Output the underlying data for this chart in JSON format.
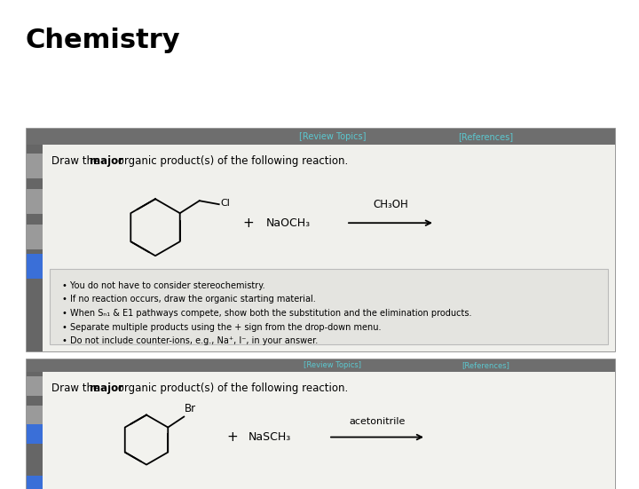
{
  "title": "Chemistry",
  "title_fontsize": 22,
  "title_fontweight": "bold",
  "bg_color": "#ffffff",
  "panel1": {
    "bg_color": "#e8e8e4",
    "inner_bg": "#f2f2ee",
    "border_color": "#888888",
    "header_color": "#6e6e6e",
    "header_text_color": "#5bc8d0",
    "review_topics": "[Review Topics]",
    "references": "[References]",
    "instruction_plain1": "Draw the ",
    "instruction_bold": "major",
    "instruction_plain2": " organic product(s) of the following reaction.",
    "reagent_top": "CH₃OH",
    "reagent_bottom": "NaOCH₃",
    "bullets": [
      "You do not have to consider stereochemistry.",
      "If no reaction occurs, draw the organic starting material.",
      "When Sₙ₁ & E1 pathways compete, show both the substitution and the elimination products.",
      "Separate multiple products using the + sign from the drop-down menu.",
      "Do not include counter-ions, e.g., Na⁺, I⁻, in your answer."
    ]
  },
  "panel2": {
    "bg_color": "#ebebea",
    "inner_bg": "#f5f5f2",
    "border_color": "#888888",
    "header_color": "#6e6e6e",
    "header_text_color": "#5bc8d0",
    "review_topics": "[Review Topics]",
    "references": "[References]",
    "instruction_plain1": "Draw the ",
    "instruction_bold": "major",
    "instruction_plain2": " organic product(s) of the following reaction.",
    "reagent_top": "acetonitrile",
    "reagent_bottom": "NaSCH₃"
  }
}
